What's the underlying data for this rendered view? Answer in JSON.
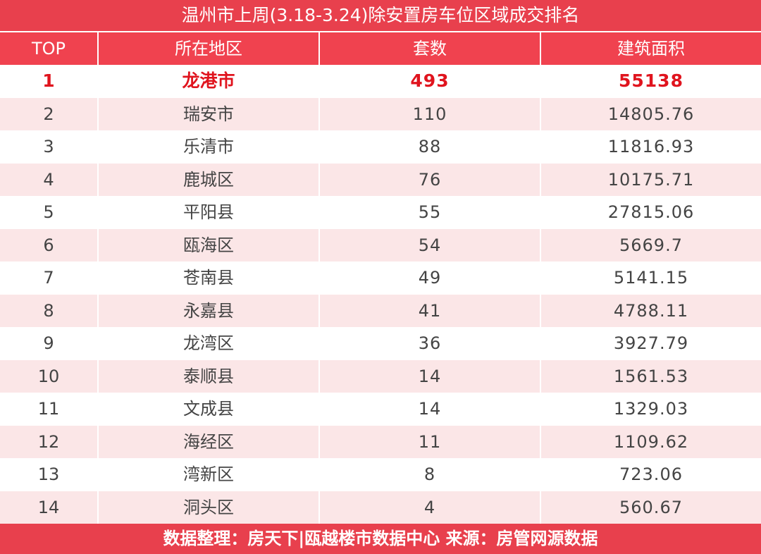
{
  "title": "温州市上周(3.18-3.24)除安置房车位区域成交排名",
  "headers": {
    "rank": "TOP",
    "region": "所在地区",
    "units": "套数",
    "area": "建筑面积"
  },
  "rows": [
    {
      "rank": "1",
      "region": "龙港市",
      "units": "493",
      "area": "55138"
    },
    {
      "rank": "2",
      "region": "瑞安市",
      "units": "110",
      "area": "14805.76"
    },
    {
      "rank": "3",
      "region": "乐清市",
      "units": "88",
      "area": "11816.93"
    },
    {
      "rank": "4",
      "region": "鹿城区",
      "units": "76",
      "area": "10175.71"
    },
    {
      "rank": "5",
      "region": "平阳县",
      "units": "55",
      "area": "27815.06"
    },
    {
      "rank": "6",
      "region": "瓯海区",
      "units": "54",
      "area": "5669.7"
    },
    {
      "rank": "7",
      "region": "苍南县",
      "units": "49",
      "area": "5141.15"
    },
    {
      "rank": "8",
      "region": "永嘉县",
      "units": "41",
      "area": "4788.11"
    },
    {
      "rank": "9",
      "region": "龙湾区",
      "units": "36",
      "area": "3927.79"
    },
    {
      "rank": "10",
      "region": "泰顺县",
      "units": "14",
      "area": "1561.53"
    },
    {
      "rank": "11",
      "region": "文成县",
      "units": "14",
      "area": "1329.03"
    },
    {
      "rank": "12",
      "region": "海经区",
      "units": "11",
      "area": "1109.62"
    },
    {
      "rank": "13",
      "region": "湾新区",
      "units": "8",
      "area": "723.06"
    },
    {
      "rank": "14",
      "region": "洞头区",
      "units": "4",
      "area": "560.67"
    }
  ],
  "footer": "数据整理：房天下|瓯越楼市数据中心 来源：房管网源数据",
  "colors": {
    "header_red": "#f0424f",
    "highlight_red": "#e0141e",
    "stripe_pink": "#fbe6e7"
  }
}
